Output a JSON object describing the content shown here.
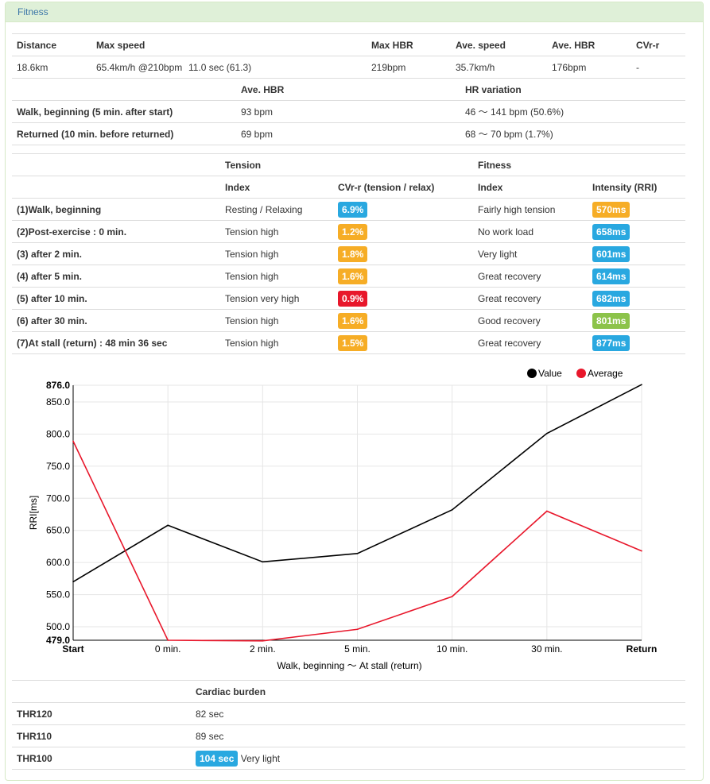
{
  "panel": {
    "title": "Fitness"
  },
  "summary": {
    "headers": [
      "Distance",
      "Max speed",
      "",
      "Max HBR",
      "Ave. speed",
      "Ave. HBR",
      "CVr-r"
    ],
    "values": [
      "18.6km",
      "65.4km/h @210bpm",
      "11.0 sec (61.3)",
      "219bpm",
      "35.7km/h",
      "176bpm",
      "-"
    ]
  },
  "hbr": {
    "headers": [
      "",
      "Ave. HBR",
      "HR variation"
    ],
    "rows": [
      {
        "label": "Walk, beginning (5 min. after start)",
        "ave": "93 bpm",
        "variation": "46 〜 141 bpm (50.6%)"
      },
      {
        "label": "Returned (10 min. before returned)",
        "ave": "69 bpm",
        "variation": "68 〜 70 bpm (1.7%)"
      }
    ]
  },
  "tension": {
    "group_headers": [
      "",
      "Tension",
      "",
      "Fitness",
      ""
    ],
    "sub_headers": [
      "",
      "Index",
      "CVr-r (tension / relax)",
      "Index",
      "Intensity (RRI)"
    ],
    "rows": [
      {
        "label": "(1)Walk, beginning",
        "t_index": "Resting / Relaxing",
        "cvrr": "6.9%",
        "cvrr_color": "#29a8e0",
        "f_index": "Fairly high tension",
        "rri": "570ms",
        "rri_color": "#f6ad26"
      },
      {
        "label": "(2)Post-exercise : 0 min.",
        "t_index": "Tension high",
        "cvrr": "1.2%",
        "cvrr_color": "#f6ad26",
        "f_index": "No work load",
        "rri": "658ms",
        "rri_color": "#29a8e0"
      },
      {
        "label": "(3) after 2 min.",
        "t_index": "Tension high",
        "cvrr": "1.8%",
        "cvrr_color": "#f6ad26",
        "f_index": "Very light",
        "rri": "601ms",
        "rri_color": "#29a8e0"
      },
      {
        "label": "(4) after 5 min.",
        "t_index": "Tension high",
        "cvrr": "1.6%",
        "cvrr_color": "#f6ad26",
        "f_index": "Great recovery",
        "rri": "614ms",
        "rri_color": "#29a8e0"
      },
      {
        "label": "(5) after 10 min.",
        "t_index": "Tension very high",
        "cvrr": "0.9%",
        "cvrr_color": "#e8172b",
        "f_index": "Great recovery",
        "rri": "682ms",
        "rri_color": "#29a8e0"
      },
      {
        "label": "(6) after 30 min.",
        "t_index": "Tension high",
        "cvrr": "1.6%",
        "cvrr_color": "#f6ad26",
        "f_index": "Good recovery",
        "rri": "801ms",
        "rri_color": "#8cc34a"
      },
      {
        "label": "(7)At stall (return) : 48 min 36 sec",
        "t_index": "Tension high",
        "cvrr": "1.5%",
        "cvrr_color": "#f6ad26",
        "f_index": "Great recovery",
        "rri": "877ms",
        "rri_color": "#29a8e0"
      }
    ]
  },
  "chart_data": {
    "type": "line",
    "categories": [
      "Start",
      "0 min.",
      "2 min.",
      "5 min.",
      "10 min.",
      "30 min.",
      "Return"
    ],
    "series": [
      {
        "name": "Value",
        "color": "#000000",
        "values": [
          570,
          658,
          601,
          614,
          682,
          801,
          877
        ]
      },
      {
        "name": "Average",
        "color": "#e8172b",
        "values": [
          789,
          479,
          478,
          496,
          547,
          680,
          618
        ]
      }
    ],
    "yticks": [
      "479.0",
      "500.0",
      "550.0",
      "600.0",
      "650.0",
      "700.0",
      "750.0",
      "800.0",
      "850.0",
      "876.0"
    ],
    "ylim": [
      479,
      876
    ],
    "ylabel": "RRI[ms]",
    "xlabel": "Walk, beginning 〜 At stall (return)",
    "grid": true,
    "legend": "top-right"
  },
  "burden": {
    "headers": [
      "",
      "Cardiac burden"
    ],
    "rows": [
      {
        "label": "THR120",
        "value": "82 sec",
        "badge": false,
        "note": ""
      },
      {
        "label": "THR110",
        "value": "89 sec",
        "badge": false,
        "note": ""
      },
      {
        "label": "THR100",
        "value": "104 sec",
        "badge": true,
        "badge_color": "#29a8e0",
        "note": "Very light"
      }
    ]
  }
}
